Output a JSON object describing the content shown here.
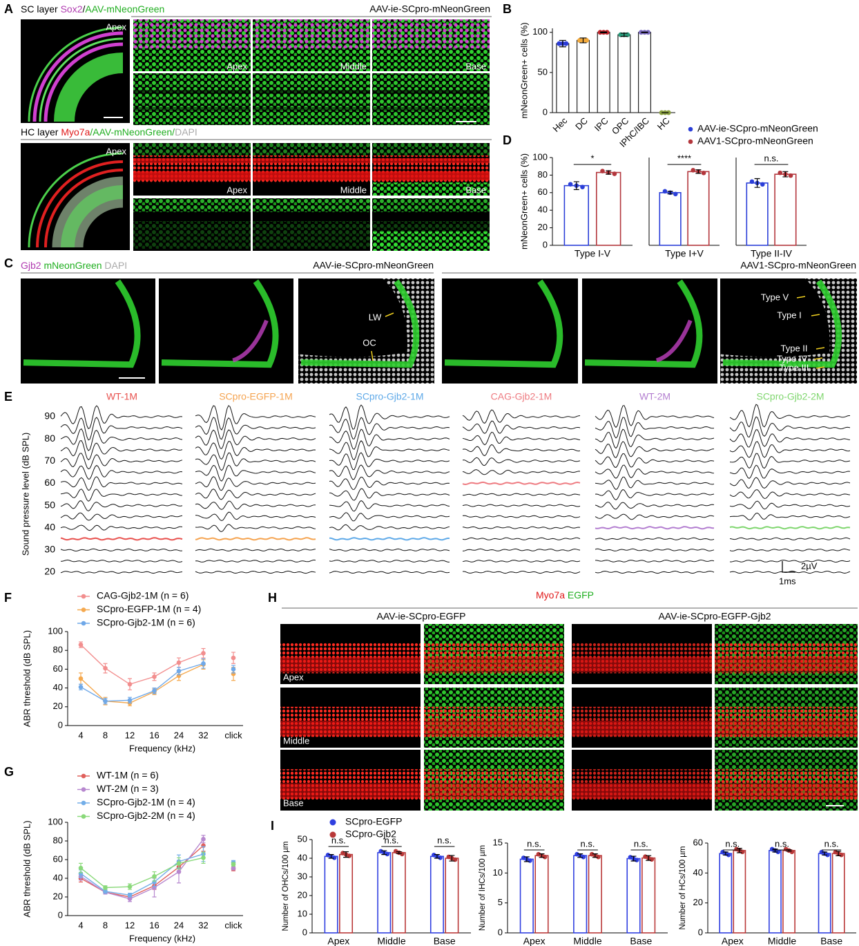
{
  "figure": {
    "panel_labels": [
      "A",
      "B",
      "C",
      "D",
      "E",
      "F",
      "G",
      "H",
      "I"
    ],
    "A": {
      "sc_prefix": "SC layer",
      "sc_stain": "Sox2",
      "sc_sep": "/",
      "sc_reporter": "AAV-mNeonGreen",
      "vector": "AAV-ie-SCpro-mNeonGreen",
      "sc_images": [
        "Apex",
        "Apex",
        "Middle",
        "Base"
      ],
      "hc_prefix": "HC layer",
      "hc_stain": "Myo7a",
      "hc_reporter": "/AAV-mNeonGreen/",
      "hc_dapi": "DAPI",
      "hc_images": [
        "Apex",
        "Apex",
        "Middle",
        "Base"
      ]
    },
    "C": {
      "stain1": "Gjb2",
      "stain2": "mNeonGreen",
      "stain3": "DAPI",
      "left_vector": "AAV-ie-SCpro-mNeonGreen",
      "right_vector": "AAV1-SCpro-mNeonGreen",
      "left_annotations": [
        "LW",
        "OC"
      ],
      "right_annotations": [
        "Type V",
        "Type I",
        "Type II",
        "Type IV",
        "Type III"
      ]
    },
    "H": {
      "stain1": "Myo7a",
      "stain2": "EGFP",
      "left_vector": "AAV-ie-SCpro-EGFP",
      "right_vector": "AAV-ie-SCpro-EGFP-Gjb2",
      "rows": [
        "Apex",
        "Middle",
        "Base"
      ]
    }
  },
  "chart_data": [
    {
      "type": "bar",
      "ylabel": "mNeonGreen+ cells (%)",
      "categories": [
        "Hec",
        "DC",
        "IPC",
        "OPC",
        "IPhC/IBC",
        "HC"
      ],
      "values": [
        86,
        90,
        100,
        97,
        100,
        0
      ],
      "errors": [
        4,
        3,
        0.5,
        2,
        0.3,
        0
      ],
      "colors": [
        "#2a3bd6",
        "#f2a93b",
        "#c0262d",
        "#2a9a7a",
        "#7a6bbf",
        "#8aa040"
      ],
      "ylim": [
        0,
        105
      ],
      "yticks": [
        0,
        50,
        100
      ]
    },
    {
      "type": "grouped_bar",
      "facets": true,
      "ylabel": "mNeonGreen+ cells (%)",
      "categories": [
        "Type I-V",
        "Type I+V",
        "Type II-IV"
      ],
      "annotations": [
        "*",
        "****",
        "n.s."
      ],
      "series": [
        {
          "name": "AAV-ie-SCpro-mNeonGreen",
          "color": "#2b3fd8",
          "values": [
            68,
            60,
            71
          ],
          "errors": [
            4.5,
            1.5,
            5
          ]
        },
        {
          "name": "AAV1-SCpro-mNeonGreen",
          "color": "#b3363c",
          "values": [
            83,
            84,
            81
          ],
          "errors": [
            2,
            2,
            3
          ]
        }
      ],
      "ylim": [
        0,
        100
      ],
      "yticks": [
        0,
        20,
        40,
        60,
        80,
        100
      ]
    },
    {
      "type": "abr",
      "ylabel": "Sound pressure level (dB SPL)",
      "ylim": [
        20,
        90
      ],
      "yticks": [
        90,
        80,
        70,
        60,
        50,
        40,
        30,
        20
      ],
      "scale_labels": [
        "2µV",
        "1ms"
      ],
      "series": [
        {
          "name": "WT-1M",
          "color": "#e8524f",
          "threshold": 35
        },
        {
          "name": "SCpro-EGFP-1M",
          "color": "#f5a34f",
          "threshold": 35
        },
        {
          "name": "SCpro-Gjb2-1M",
          "color": "#5ea9e8",
          "threshold": 35
        },
        {
          "name": "CAG-Gjb2-1M",
          "color": "#ee7a80",
          "threshold": 60
        },
        {
          "name": "WT-2M",
          "color": "#b37ed0",
          "threshold": 40
        },
        {
          "name": "SCpro-Gjb2-2M",
          "color": "#7fd66e",
          "threshold": 40
        }
      ]
    },
    {
      "type": "line",
      "xlabel": "Frequency (kHz)",
      "ylabel": "ABR threshold (dB SPL)",
      "categories": [
        "4",
        "8",
        "12",
        "16",
        "24",
        "32",
        "click"
      ],
      "ylim": [
        0,
        100
      ],
      "yticks": [
        0,
        20,
        40,
        60,
        80,
        100
      ],
      "series": [
        {
          "name": "CAG-Gjb2-1M (n = 6)",
          "color": "#f28e8e",
          "values": [
            86,
            61,
            44,
            52,
            67,
            77,
            72
          ],
          "errors": [
            3,
            5,
            6,
            4,
            5,
            5,
            6
          ]
        },
        {
          "name": "SCpro-EGFP-1M (n = 4)",
          "color": "#f5a94f",
          "values": [
            50,
            26,
            24,
            36,
            53,
            65,
            55
          ],
          "errors": [
            6,
            4,
            3,
            3,
            5,
            5,
            7
          ]
        },
        {
          "name": "SCpro-Gjb2-1M (n = 6)",
          "color": "#6fa8e8",
          "values": [
            41,
            26,
            27,
            37,
            58,
            66,
            60
          ],
          "errors": [
            3,
            3,
            3,
            3,
            4,
            5,
            4
          ]
        }
      ]
    },
    {
      "type": "line",
      "xlabel": "Frequency (kHz)",
      "ylabel": "ABR threshold (dB SPL)",
      "categories": [
        "4",
        "8",
        "12",
        "16",
        "24",
        "32",
        "click"
      ],
      "ylim": [
        0,
        100
      ],
      "yticks": [
        0,
        20,
        40,
        60,
        80,
        100
      ],
      "series": [
        {
          "name": "WT-1M (n = 6)",
          "color": "#e0605c",
          "values": [
            40,
            25,
            20,
            32,
            52,
            75,
            50
          ],
          "errors": [
            4,
            2,
            2,
            4,
            6,
            6,
            2
          ]
        },
        {
          "name": "WT-2M (n = 3)",
          "color": "#b788cf",
          "values": [
            42,
            25,
            18,
            30,
            47,
            82,
            51
          ],
          "errors": [
            4,
            2,
            3,
            10,
            12,
            4,
            2
          ]
        },
        {
          "name": "SCpro-Gjb2-1M (n = 4)",
          "color": "#73aee8",
          "values": [
            45,
            26,
            22,
            36,
            58,
            66,
            57
          ],
          "errors": [
            4,
            2,
            2,
            5,
            7,
            8,
            2
          ]
        },
        {
          "name": "SCpro-Gjb2-2M (n = 4)",
          "color": "#8ad97a",
          "values": [
            51,
            30,
            31,
            42,
            56,
            62,
            55
          ],
          "errors": [
            5,
            2,
            3,
            5,
            6,
            6,
            2
          ]
        }
      ]
    },
    {
      "type": "grouped_bar",
      "ylabel": "Number of OHCs/100 µm",
      "categories": [
        "Apex",
        "Middle",
        "Base"
      ],
      "annotations": [
        "n.s.",
        "n.s.",
        "n.s."
      ],
      "series": [
        {
          "name": "SCpro-EGFP",
          "color": "#2f3fe0",
          "values": [
            41,
            43,
            41
          ],
          "errors": [
            1,
            1,
            1
          ]
        },
        {
          "name": "SCpro-Gjb2",
          "color": "#b93838",
          "values": [
            42,
            43,
            40
          ],
          "errors": [
            1.5,
            0.5,
            1.5
          ]
        }
      ],
      "ylim": [
        0,
        50
      ],
      "yticks": [
        0,
        10,
        20,
        30,
        40,
        50
      ]
    },
    {
      "type": "grouped_bar",
      "ylabel": "Number of IHCs/100 µm",
      "categories": [
        "Apex",
        "Middle",
        "Base"
      ],
      "annotations": [
        "n.s.",
        "n.s.",
        "n.s."
      ],
      "series": [
        {
          "color": "#2f3fe0",
          "values": [
            12.3,
            12.9,
            12.4
          ],
          "errors": [
            0.4,
            0.3,
            0.4
          ]
        },
        {
          "color": "#b93838",
          "values": [
            12.9,
            12.9,
            12.5
          ],
          "errors": [
            0.3,
            0.3,
            0.4
          ]
        }
      ],
      "ylim": [
        0,
        15
      ],
      "yticks": [
        0,
        5,
        10,
        15
      ]
    },
    {
      "type": "grouped_bar",
      "ylabel": "Number of HCs/100 µm",
      "categories": [
        "Apex",
        "Middle",
        "Base"
      ],
      "annotations": [
        "n.s.",
        "n.s.",
        "n.s."
      ],
      "series": [
        {
          "color": "#2f3fe0",
          "values": [
            53,
            55,
            53
          ],
          "errors": [
            1,
            1,
            1
          ]
        },
        {
          "color": "#b93838",
          "values": [
            55,
            55,
            53
          ],
          "errors": [
            1.5,
            0.5,
            1.5
          ]
        }
      ],
      "ylim": [
        0,
        60
      ],
      "yticks": [
        0,
        20,
        40,
        60
      ]
    }
  ]
}
